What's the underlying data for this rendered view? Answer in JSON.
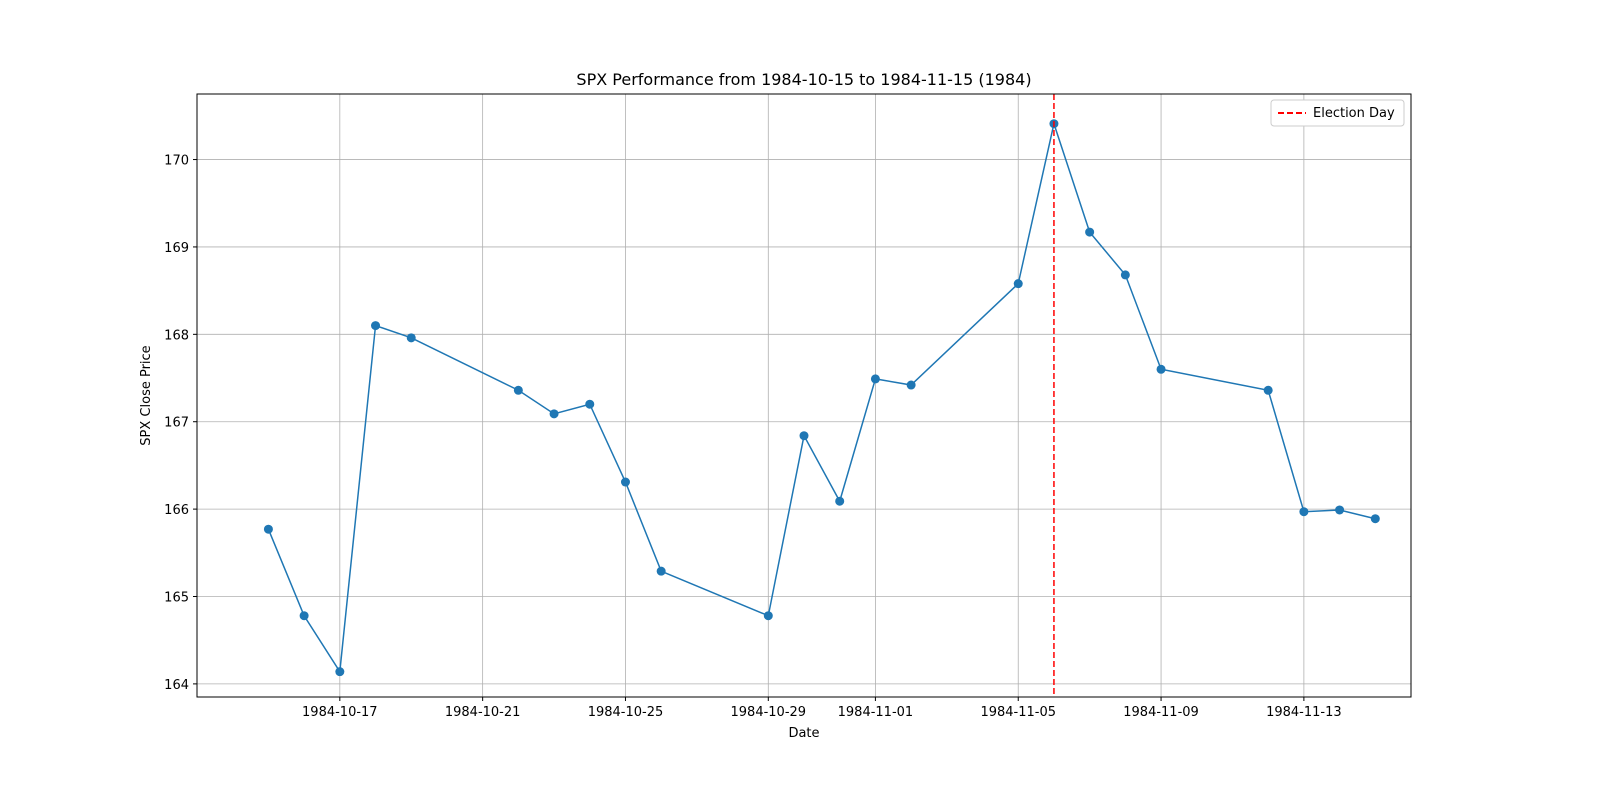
{
  "chart_data": {
    "type": "line",
    "title": "SPX Performance from 1984-10-15 to 1984-11-15 (1984)",
    "xlabel": "Date",
    "ylabel": "SPX Close Price",
    "xlim": [
      "1984-10-13",
      "1984-11-16"
    ],
    "ylim": [
      163.85,
      170.75
    ],
    "x_ticks": [
      "1984-10-17",
      "1984-10-21",
      "1984-10-25",
      "1984-10-29",
      "1984-11-01",
      "1984-11-05",
      "1984-11-09",
      "1984-11-13"
    ],
    "y_ticks": [
      164,
      165,
      166,
      167,
      168,
      169,
      170
    ],
    "grid": true,
    "legend_position": "top-right",
    "series": [
      {
        "color": "#1f77b4",
        "marker": "circle",
        "x": [
          "1984-10-15",
          "1984-10-16",
          "1984-10-17",
          "1984-10-18",
          "1984-10-19",
          "1984-10-22",
          "1984-10-23",
          "1984-10-24",
          "1984-10-25",
          "1984-10-26",
          "1984-10-29",
          "1984-10-30",
          "1984-10-31",
          "1984-11-01",
          "1984-11-02",
          "1984-11-05",
          "1984-11-06",
          "1984-11-07",
          "1984-11-08",
          "1984-11-09",
          "1984-11-12",
          "1984-11-13",
          "1984-11-14",
          "1984-11-15"
        ],
        "y": [
          165.77,
          164.78,
          164.14,
          168.1,
          167.96,
          167.36,
          167.09,
          167.2,
          166.31,
          165.29,
          164.78,
          166.84,
          166.09,
          167.49,
          167.42,
          168.58,
          170.41,
          169.17,
          168.68,
          167.6,
          167.36,
          165.97,
          165.99,
          165.89
        ]
      }
    ],
    "annotations": [
      {
        "type": "vline",
        "x": "1984-11-06",
        "color": "#ff0000",
        "style": "dashed",
        "label": "Election Day"
      }
    ]
  }
}
